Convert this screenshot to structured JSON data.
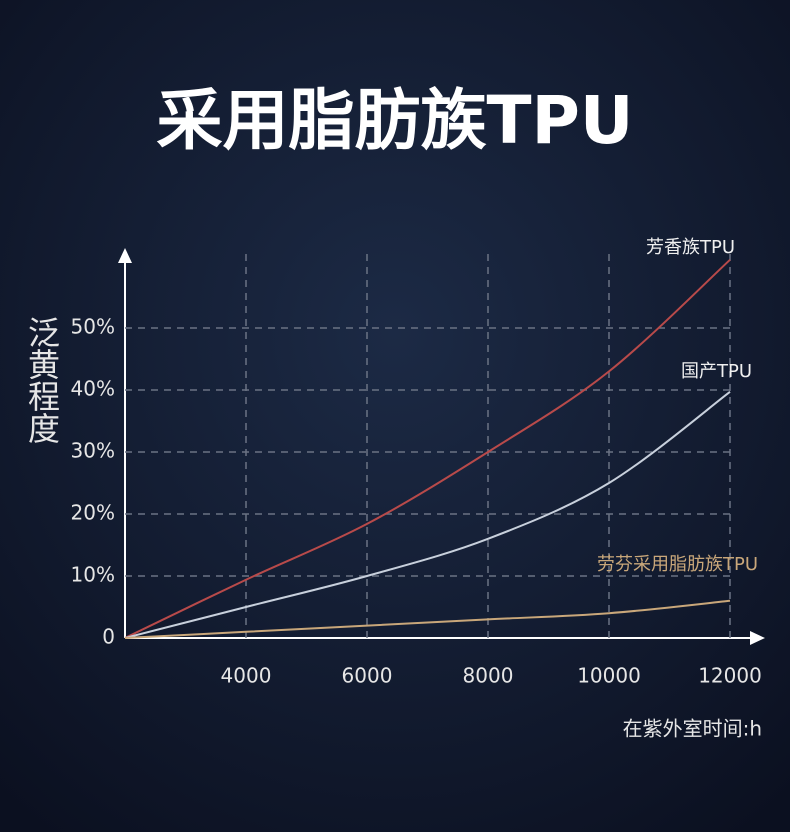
{
  "chart_data": {
    "type": "line",
    "title": "采用脂肪族TPU",
    "x_label": "在紫外室时间:h",
    "y_label": "泛黄程度",
    "x": [
      2000,
      4000,
      6000,
      8000,
      10000,
      12000
    ],
    "xlim": [
      2000,
      12000
    ],
    "xticks": [
      4000,
      6000,
      8000,
      10000,
      12000
    ],
    "ylim": [
      0,
      62
    ],
    "yticks": [
      0,
      {
        "value": 10,
        "label": "10%"
      },
      {
        "value": 20,
        "label": "20%"
      },
      {
        "value": 30,
        "label": "30%"
      },
      {
        "value": 40,
        "label": "40%"
      },
      {
        "value": 50,
        "label": "50%"
      }
    ],
    "grid": true,
    "series": [
      {
        "name": "芳香族TPU",
        "color": "#b84a4a",
        "values": [
          0,
          9.4,
          18.4,
          30,
          43,
          61
        ]
      },
      {
        "name": "国产TPU",
        "color": "#c8d0dc",
        "values": [
          0,
          5,
          10,
          16,
          25,
          39.7
        ]
      },
      {
        "name": "劳芬采用脂肪族TPU",
        "color": "#c9a77a",
        "values": [
          0,
          1,
          2,
          3,
          4,
          6
        ]
      }
    ]
  }
}
